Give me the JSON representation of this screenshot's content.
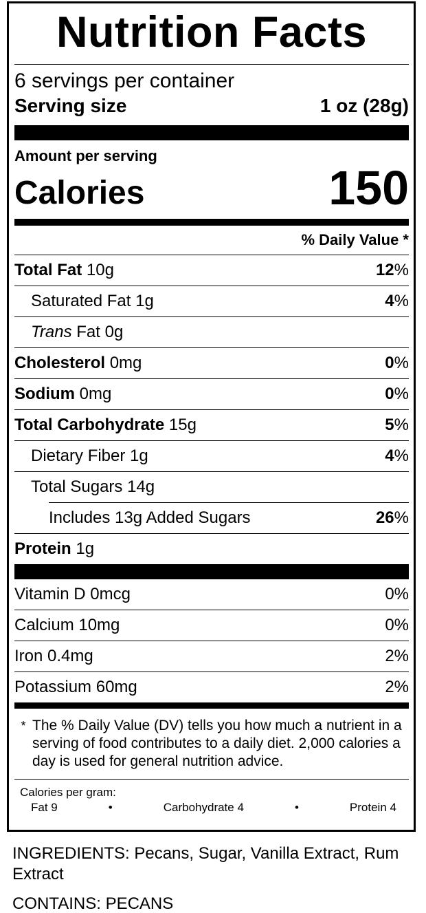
{
  "header": {
    "title": "Nutrition Facts"
  },
  "servings": {
    "per_container": "6 servings per container",
    "size_label": "Serving size",
    "size_value": "1 oz (28g)"
  },
  "calories": {
    "amount_label": "Amount per serving",
    "label": "Calories",
    "value": "150"
  },
  "dv_header": "% Daily Value *",
  "nutrients": [
    {
      "name": "Total Fat",
      "amount": "10g",
      "dv_number": "12",
      "dv_unit": "%"
    },
    {
      "name": "Saturated Fat",
      "amount": "1g",
      "dv_number": "4",
      "dv_unit": "%"
    },
    {
      "name_italic": "Trans",
      "name": "Fat",
      "amount": "0g"
    },
    {
      "name": "Cholesterol",
      "amount": "0mg",
      "dv_number": "0",
      "dv_unit": "%"
    },
    {
      "name": "Sodium",
      "amount": "0mg",
      "dv_number": "0",
      "dv_unit": "%"
    },
    {
      "name": "Total Carbohydrate",
      "amount": "15g",
      "dv_number": "5",
      "dv_unit": "%"
    },
    {
      "name": "Dietary Fiber",
      "amount": "1g",
      "dv_number": "4",
      "dv_unit": "%"
    },
    {
      "name": "Total Sugars",
      "amount": "14g"
    },
    {
      "name": "Includes 13g Added Sugars",
      "dv_number": "26",
      "dv_unit": "%"
    },
    {
      "name": "Protein",
      "amount": "1g"
    }
  ],
  "vitamins": [
    {
      "name": "Vitamin D",
      "amount": "0mcg",
      "dv": "0%"
    },
    {
      "name": "Calcium",
      "amount": "10mg",
      "dv": "0%"
    },
    {
      "name": "Iron",
      "amount": "0.4mg",
      "dv": "2%"
    },
    {
      "name": "Potassium",
      "amount": "60mg",
      "dv": "2%"
    }
  ],
  "footnote": {
    "mark": "*",
    "text": "The % Daily Value (DV) tells you how much a nutrient in a serving of food contributes to a daily diet. 2,000 calories a day is used for general nutrition advice."
  },
  "calories_per_gram": {
    "label": "Calories per gram:",
    "fat": "Fat 9",
    "carbohydrate": "Carbohydrate 4",
    "protein": "Protein 4"
  },
  "ingredients": "INGREDIENTS: Pecans, Sugar, Vanilla Extract, Rum Extract",
  "contains": "CONTAINS: PECANS"
}
